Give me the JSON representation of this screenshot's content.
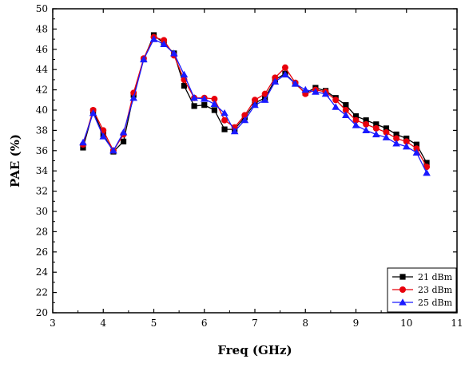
{
  "chart_data": {
    "type": "line",
    "title": "",
    "xlabel": "Freq (GHz)",
    "ylabel": "PAE (%)",
    "xlim": [
      3,
      11
    ],
    "ylim": [
      20,
      50
    ],
    "xticks": [
      3,
      4,
      5,
      6,
      7,
      8,
      9,
      10,
      11
    ],
    "yticks": [
      20,
      22,
      24,
      26,
      28,
      30,
      32,
      34,
      36,
      38,
      40,
      42,
      44,
      46,
      48,
      50
    ],
    "legend_position": "bottom-right",
    "grid": false,
    "series": [
      {
        "name": "21 dBm",
        "color": "#000000",
        "marker": "square",
        "x": [
          3.6,
          3.8,
          4.0,
          4.2,
          4.4,
          4.6,
          4.8,
          5.0,
          5.2,
          5.4,
          5.6,
          5.8,
          6.0,
          6.2,
          6.4,
          6.6,
          6.8,
          7.0,
          7.2,
          7.4,
          7.6,
          7.8,
          8.0,
          8.2,
          8.4,
          8.6,
          8.8,
          9.0,
          9.2,
          9.4,
          9.6,
          9.8,
          10.0,
          10.2,
          10.4
        ],
        "y": [
          36.3,
          39.9,
          37.6,
          35.9,
          36.9,
          41.5,
          45.0,
          47.4,
          46.6,
          45.6,
          42.4,
          40.4,
          40.5,
          40.0,
          38.1,
          38.1,
          39.3,
          40.7,
          41.2,
          43.0,
          43.6,
          42.6,
          41.7,
          42.2,
          41.9,
          41.2,
          40.5,
          39.4,
          39.0,
          38.6,
          38.2,
          37.6,
          37.2,
          36.6,
          34.8
        ]
      },
      {
        "name": "23 dBm",
        "color": "#e8000b",
        "marker": "circle",
        "x": [
          3.6,
          3.8,
          4.0,
          4.2,
          4.4,
          4.6,
          4.8,
          5.0,
          5.2,
          5.4,
          5.6,
          5.8,
          6.0,
          6.2,
          6.4,
          6.6,
          6.8,
          7.0,
          7.2,
          7.4,
          7.6,
          7.8,
          8.0,
          8.2,
          8.4,
          8.6,
          8.8,
          9.0,
          9.2,
          9.4,
          9.6,
          9.8,
          10.0,
          10.2,
          10.4
        ],
        "y": [
          36.6,
          40.0,
          38.0,
          36.0,
          37.6,
          41.7,
          45.1,
          47.2,
          46.9,
          45.4,
          43.0,
          41.2,
          41.2,
          41.1,
          39.0,
          38.3,
          39.5,
          41.0,
          41.6,
          43.2,
          44.2,
          42.7,
          41.6,
          42.0,
          41.8,
          41.0,
          40.0,
          39.0,
          38.6,
          38.2,
          37.8,
          37.2,
          36.9,
          36.2,
          34.4
        ]
      },
      {
        "name": "25 dBm",
        "color": "#1a1aff",
        "marker": "triangle",
        "x": [
          3.6,
          3.8,
          4.0,
          4.2,
          4.4,
          4.6,
          4.8,
          5.0,
          5.2,
          5.4,
          5.6,
          5.8,
          6.0,
          6.2,
          6.4,
          6.6,
          6.8,
          7.0,
          7.2,
          7.4,
          7.6,
          7.8,
          8.0,
          8.2,
          8.4,
          8.6,
          8.8,
          9.0,
          9.2,
          9.4,
          9.6,
          9.8,
          10.0,
          10.2,
          10.4
        ],
        "y": [
          36.8,
          39.7,
          37.4,
          36.0,
          37.8,
          41.2,
          45.0,
          47.0,
          46.5,
          45.6,
          43.5,
          41.2,
          41.1,
          40.6,
          39.7,
          37.9,
          39.0,
          40.5,
          41.0,
          42.8,
          43.5,
          42.6,
          42.0,
          41.8,
          41.6,
          40.3,
          39.5,
          38.5,
          38.0,
          37.6,
          37.3,
          36.7,
          36.4,
          35.8,
          33.8
        ]
      }
    ]
  }
}
